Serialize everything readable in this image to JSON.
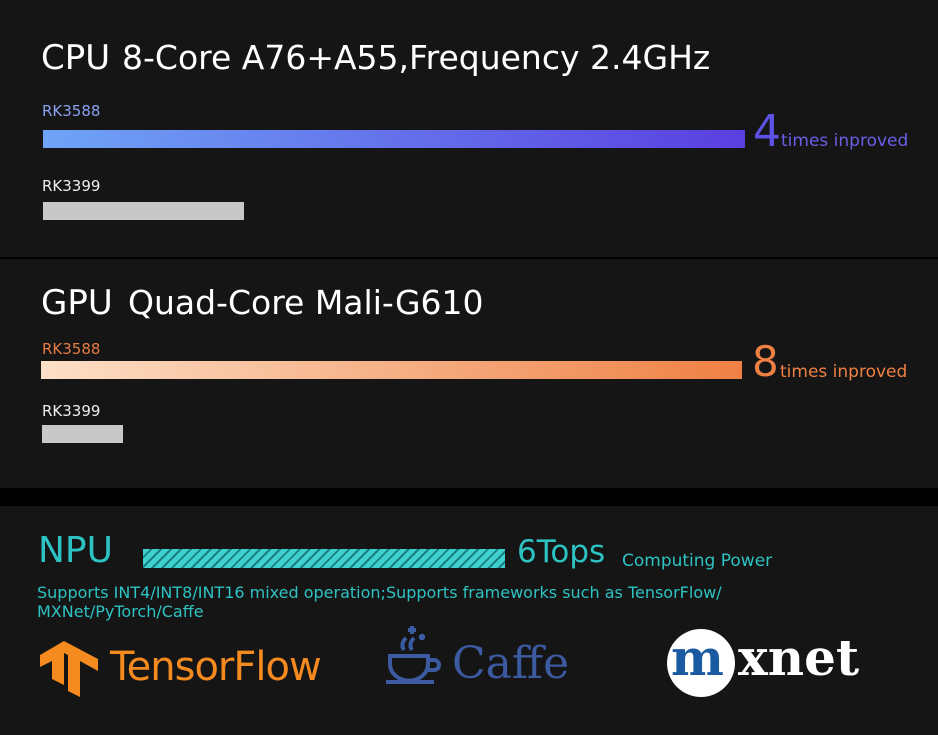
{
  "cpu": {
    "label": "CPU",
    "spec": "8-Core A76+A55,Frequency 2.4GHz",
    "new_chip": "RK3588",
    "old_chip": "RK3399",
    "factor": "4",
    "factor_text": "times inproved"
  },
  "gpu": {
    "label": "GPU",
    "spec": "Quad-Core Mali-G610",
    "new_chip": "RK3588",
    "old_chip": "RK3399",
    "factor": "8",
    "factor_text": "times inproved"
  },
  "npu": {
    "label": "NPU",
    "power": "6Tops",
    "power_text": "Computing Power",
    "description": [
      "Supports INT4/INT8/INT16 mixed operation;Supports frameworks such as TensorFlow/",
      "MXNet/PyTorch/Caffe"
    ],
    "logos": {
      "tensorflow": "TensorFlow",
      "caffe": "Caffe",
      "mxnet_m": "m",
      "mxnet_rest": "xnet"
    }
  }
}
